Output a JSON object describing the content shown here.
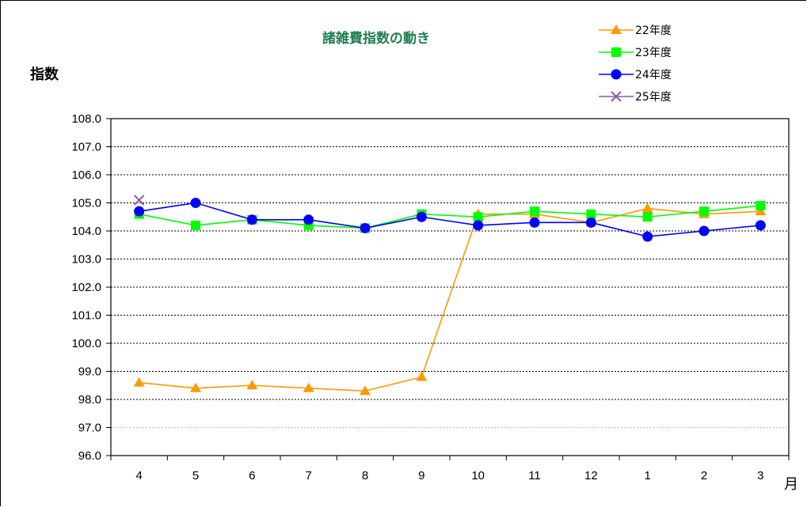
{
  "chart_data": {
    "type": "line",
    "title": "諸雑費指数の動き",
    "ylabel": "指数",
    "xlabel": "月",
    "ylim": [
      96.0,
      108.0
    ],
    "yticks": [
      "108.0",
      "107.0",
      "106.0",
      "105.0",
      "104.0",
      "103.0",
      "102.0",
      "101.0",
      "100.0",
      "99.0",
      "98.0",
      "97.0",
      "96.0"
    ],
    "categories": [
      "4",
      "5",
      "6",
      "7",
      "8",
      "9",
      "10",
      "11",
      "12",
      "1",
      "2",
      "3"
    ],
    "grid": "horizontal dotted",
    "legend_position": "top-right",
    "series": [
      {
        "name": "22年度",
        "color": "#ff9900",
        "marker": "triangle",
        "values": [
          98.6,
          98.4,
          98.5,
          98.4,
          98.3,
          98.8,
          104.6,
          104.6,
          104.3,
          104.8,
          104.6,
          104.7
        ]
      },
      {
        "name": "23年度",
        "color": "#00ff00",
        "marker": "square",
        "values": [
          104.6,
          104.2,
          104.4,
          104.2,
          104.1,
          104.6,
          104.5,
          104.7,
          104.6,
          104.5,
          104.7,
          104.9
        ]
      },
      {
        "name": "24年度",
        "color": "#0000ff",
        "marker": "circle",
        "values": [
          104.7,
          105.0,
          104.4,
          104.4,
          104.1,
          104.5,
          104.2,
          104.3,
          104.3,
          103.8,
          104.0,
          104.2
        ]
      },
      {
        "name": "25年度",
        "color": "#8a5aa8",
        "marker": "x",
        "values": [
          105.1,
          null,
          null,
          null,
          null,
          null,
          null,
          null,
          null,
          null,
          null,
          null
        ]
      }
    ]
  }
}
